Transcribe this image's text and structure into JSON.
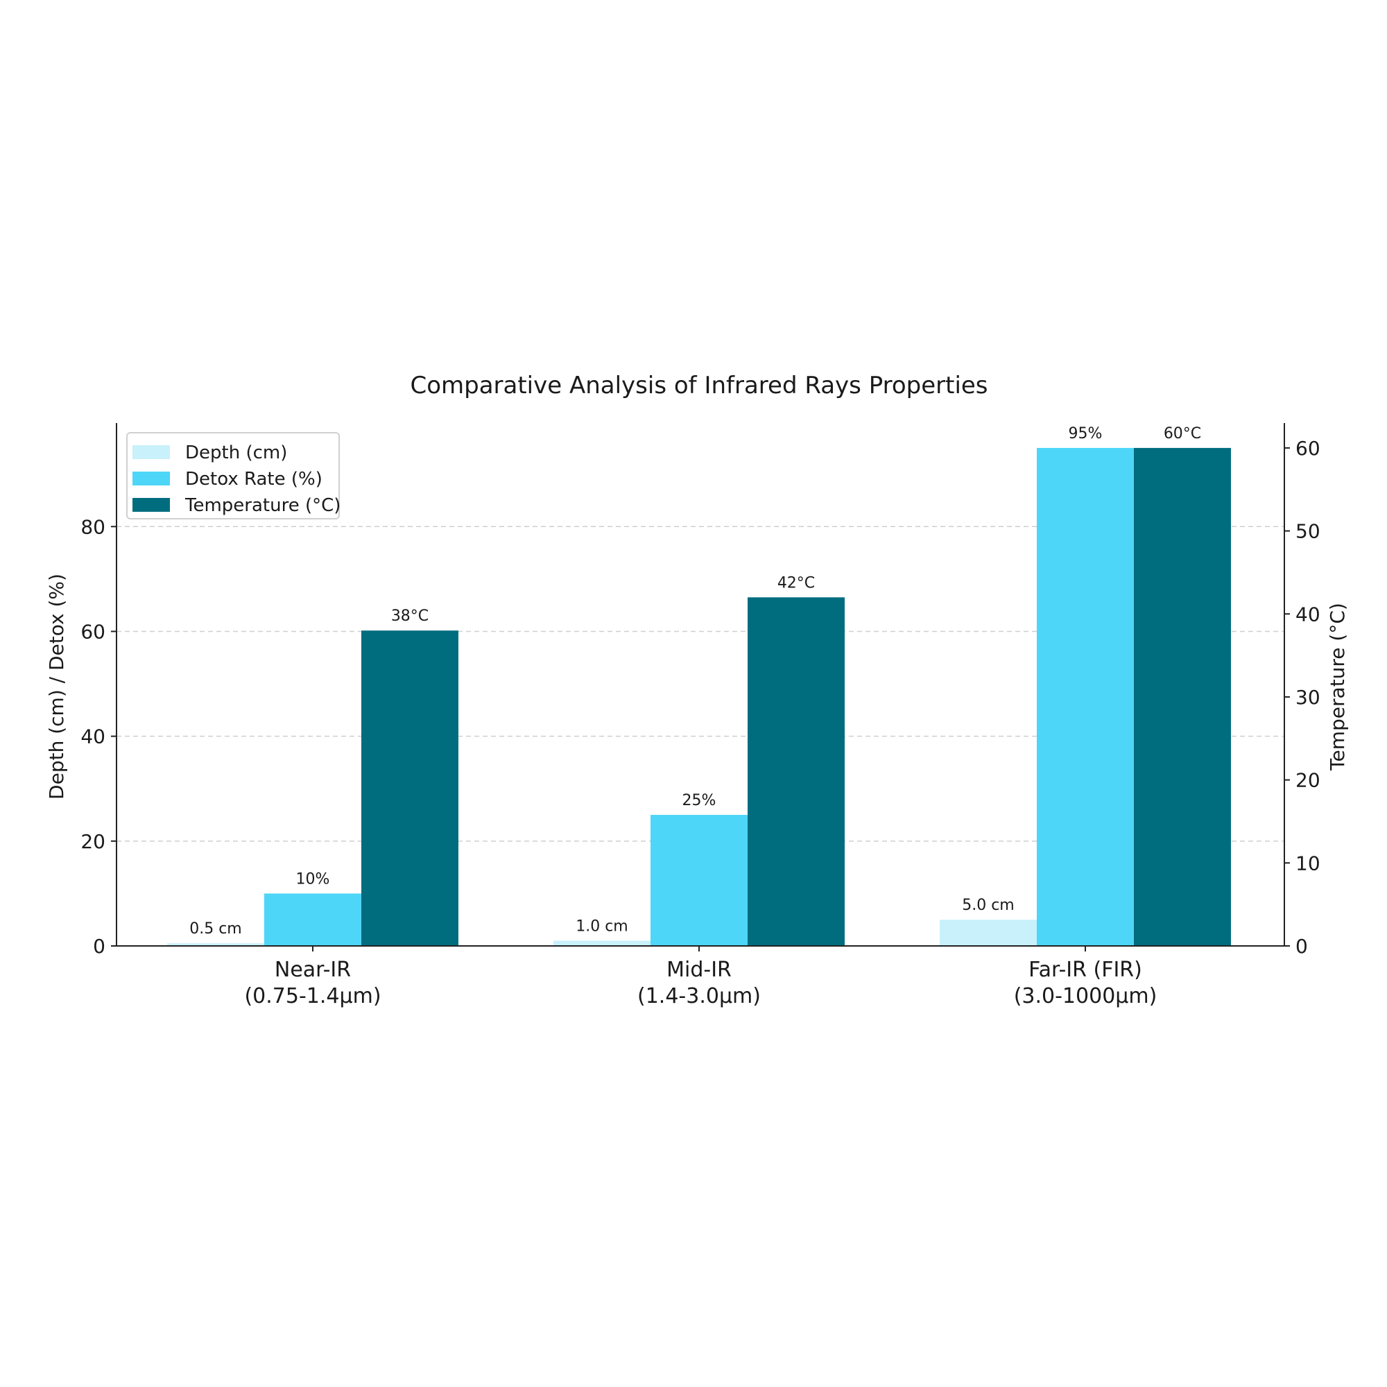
{
  "chart_data": {
    "type": "bar",
    "title": "Comparative Analysis of Infrared Rays Properties",
    "categories": [
      [
        "Near-IR",
        "(0.75-1.4µm)"
      ],
      [
        "Mid-IR",
        "(1.4-3.0µm)"
      ],
      [
        "Far-IR (FIR)",
        "(3.0-1000µm)"
      ]
    ],
    "series": [
      {
        "name": "Depth (cm)",
        "axis": "left",
        "color": "#c8f1fb",
        "values": [
          0.5,
          1.0,
          5.0
        ],
        "labels": [
          "0.5 cm",
          "1.0 cm",
          "5.0 cm"
        ]
      },
      {
        "name": "Detox Rate (%)",
        "axis": "left",
        "color": "#4dd6f7",
        "values": [
          10,
          25,
          95
        ],
        "labels": [
          "10%",
          "25%",
          "95%"
        ]
      },
      {
        "name": "Temperature (°C)",
        "axis": "right",
        "color": "#006d7f",
        "values": [
          38,
          42,
          60
        ],
        "labels": [
          "38°C",
          "42°C",
          "60°C"
        ]
      }
    ],
    "ylabel": "Depth (cm) / Detox (%)",
    "ylabel_right": "Temperature (°C)",
    "ylim": [
      0,
      99.75
    ],
    "ylim_right": [
      0,
      63
    ],
    "yticks": [
      0,
      20,
      40,
      60,
      80
    ],
    "yticks_right": [
      0,
      10,
      20,
      30,
      40,
      50,
      60
    ],
    "grid": "horizontal dashed",
    "legend": "top-left"
  }
}
